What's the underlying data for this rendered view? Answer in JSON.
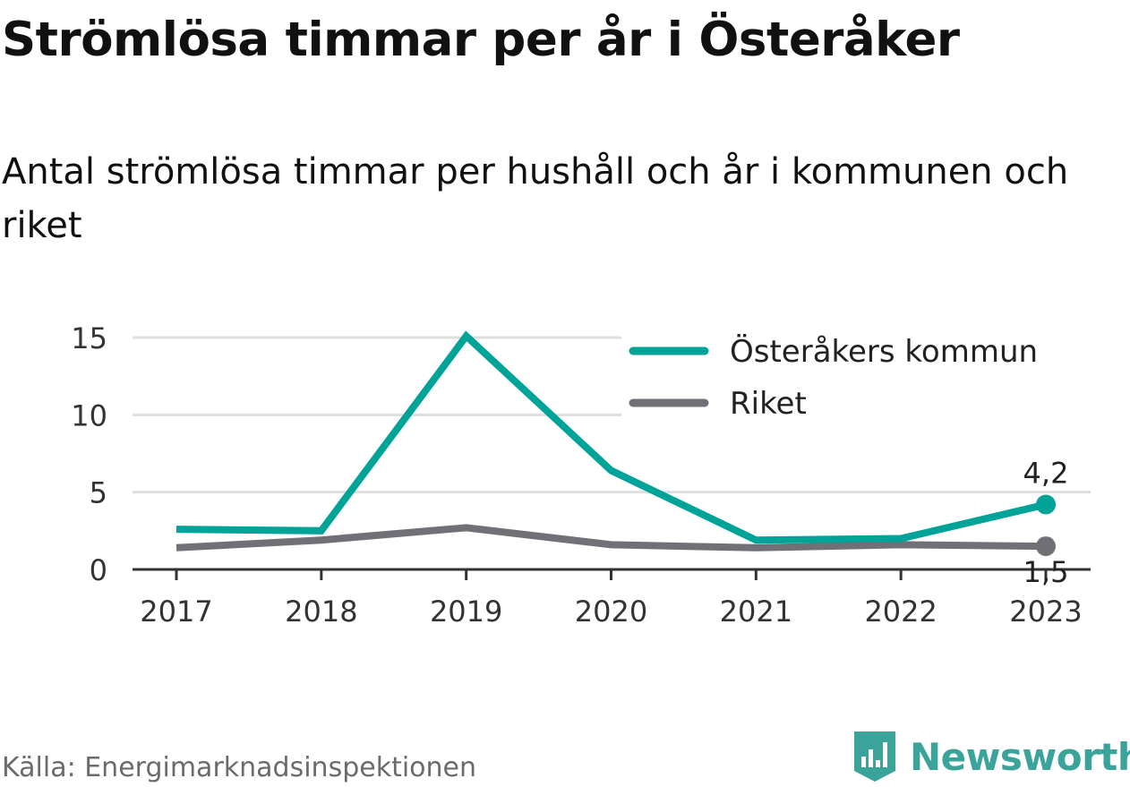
{
  "title": "Strömlösa timmar per år i Österåker",
  "subtitle": "Antal strömlösa timmar per hushåll och år i kommunen och riket",
  "source": "Källa: Energimarknadsinspektionen",
  "brand": {
    "name": "Newsworthy",
    "icon": "newsworthy-logo-icon",
    "color": "#3aa39a"
  },
  "chart_data": {
    "type": "line",
    "categories": [
      "2017",
      "2018",
      "2019",
      "2020",
      "2021",
      "2022",
      "2023"
    ],
    "series": [
      {
        "name": "Österåkers kommun",
        "color": "#00a398",
        "values": [
          2.6,
          2.5,
          15.1,
          6.4,
          1.9,
          2.0,
          4.2
        ],
        "end_label": "4,2"
      },
      {
        "name": "Riket",
        "color": "#717077",
        "values": [
          1.4,
          1.9,
          2.7,
          1.6,
          1.4,
          1.6,
          1.5
        ],
        "end_label": "1,5"
      }
    ],
    "yticks": [
      0,
      5,
      10,
      15
    ],
    "ylim": [
      0,
      15
    ],
    "grid": true,
    "legend_position": "top-right"
  }
}
